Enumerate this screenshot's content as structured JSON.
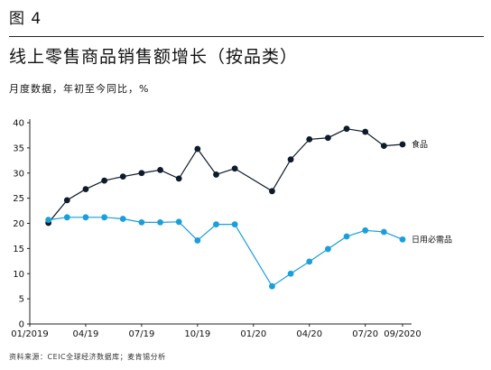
{
  "figure_label": "图 4",
  "title": "线上零售商品销售额增长（按品类）",
  "subtitle": "月度数据，年初至今同比，%",
  "source": "资料来源：CEIC全球经济数据库；麦肯锡分析",
  "chart_data": {
    "type": "line",
    "x": [
      "2019-02",
      "2019-03",
      "2019-04",
      "2019-05",
      "2019-06",
      "2019-07",
      "2019-08",
      "2019-09",
      "2019-10",
      "2019-11",
      "2019-12",
      "2020-02",
      "2020-03",
      "2020-04",
      "2020-05",
      "2020-06",
      "2020-07",
      "2020-08",
      "2020-09"
    ],
    "x_tick_labels": [
      "01/2019",
      "04/19",
      "07/19",
      "10/19",
      "01/20",
      "04/20",
      "07/20",
      "09/2020"
    ],
    "ylim": [
      0,
      40
    ],
    "y_ticks": [
      0,
      5,
      10,
      15,
      20,
      25,
      30,
      35,
      40
    ],
    "grid": false,
    "series": [
      {
        "name": "食品",
        "color": "#0d1b2a",
        "values": [
          20.1,
          24.6,
          26.8,
          28.5,
          29.3,
          30.0,
          30.6,
          28.9,
          34.8,
          29.7,
          30.9,
          26.4,
          32.7,
          36.7,
          37.0,
          38.8,
          38.2,
          35.4,
          35.7
        ]
      },
      {
        "name": "日用必需品",
        "color": "#1a9fdb",
        "values": [
          20.7,
          21.2,
          21.2,
          21.2,
          20.9,
          20.2,
          20.2,
          20.3,
          16.6,
          19.8,
          19.8,
          7.5,
          10.0,
          12.4,
          14.9,
          17.4,
          18.6,
          18.3,
          16.8
        ]
      }
    ]
  }
}
